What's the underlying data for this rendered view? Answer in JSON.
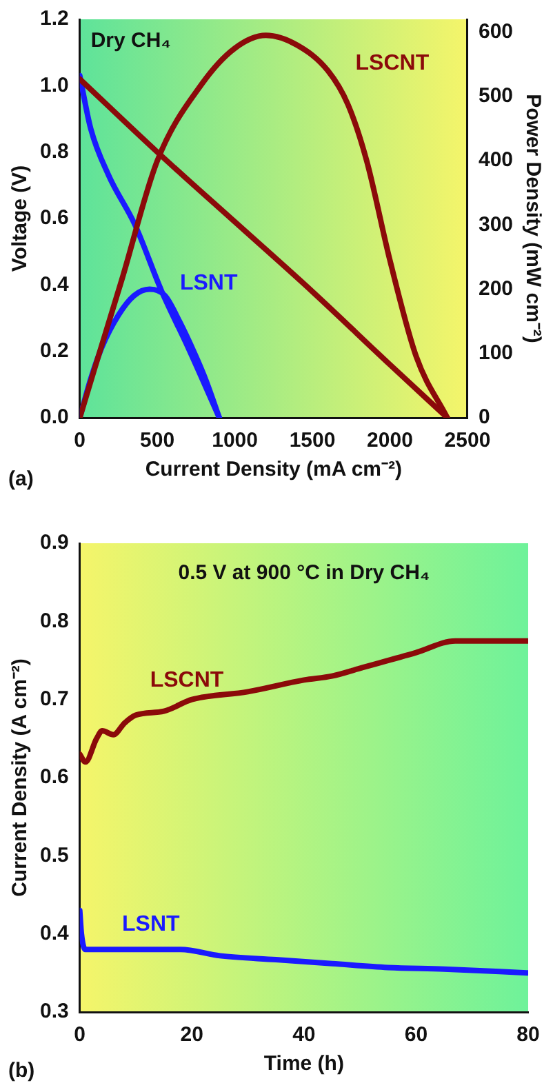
{
  "chart_data": [
    {
      "type": "line",
      "xlabel": "Current Density (mA cm⁻²)",
      "ylabel": "Voltage (V)",
      "y2label": "Power Density (mW cm⁻²)",
      "annotations": [
        "Dry CH₄",
        "(a)"
      ],
      "series": [
        {
          "color": "#8b0a0a",
          "x": [
            0,
            500,
            1000,
            1500,
            2000,
            2370
          ],
          "values": [
            1.02,
            0.8,
            0.59,
            0.38,
            0.16,
            0.0
          ]
        },
        {
          "name": "LSCNT",
          "color": "#8b0a0a",
          "axis": "y2",
          "x": [
            0,
            100,
            270,
            500,
            786,
            1000,
            1200,
            1400,
            1600,
            1730,
            1850,
            2000,
            2170,
            2370
          ],
          "values": [
            0,
            80,
            214,
            400,
            519,
            575,
            595,
            580,
            540,
            487,
            400,
            245,
            95,
            0
          ]
        },
        {
          "color": "#1a1aff",
          "x": [
            0,
            71,
            186,
            357,
            529,
            700,
            900
          ],
          "values": [
            1.03,
            0.87,
            0.73,
            0.58,
            0.38,
            0.21,
            0.0
          ]
        },
        {
          "name": "LSNT",
          "color": "#1a1aff",
          "axis": "y2",
          "x": [
            0,
            70,
            143,
            250,
            350,
            450,
            550,
            643,
            750,
            814,
            900
          ],
          "values": [
            0,
            60,
            110,
            160,
            190,
            200,
            190,
            150,
            95,
            58,
            0
          ]
        }
      ],
      "xlim": [
        0,
        2500
      ],
      "xticks": [
        0,
        500,
        1000,
        1500,
        2000,
        2500
      ],
      "ylim": [
        0,
        1.2
      ],
      "yticks": [
        {
          "value": 0,
          "label": "0.0"
        },
        {
          "value": 0.2,
          "label": "0.2"
        },
        {
          "value": 0.4,
          "label": "0.4"
        },
        {
          "value": 0.6,
          "label": "0.6"
        },
        {
          "value": 0.8,
          "label": "0.8"
        },
        {
          "value": 1,
          "label": "1.0"
        },
        {
          "value": 1.2,
          "label": "1.2"
        }
      ],
      "y2lim": [
        0,
        620
      ],
      "y2ticks": [
        0,
        100,
        200,
        300,
        400,
        500,
        600
      ],
      "grid": false,
      "legend": false,
      "marker": "none",
      "line_style": "solid"
    },
    {
      "type": "line",
      "xlabel": "Time (h)",
      "ylabel": "Current Density (A cm⁻²)",
      "annotations": [
        "0.5 V at 900 °C in Dry CH₄",
        "(b)"
      ],
      "series": [
        {
          "name": "LSCNT",
          "color": "#8b0a0a",
          "x": [
            0,
            1,
            3,
            4,
            6,
            8,
            10,
            15,
            20,
            30,
            40,
            45,
            50,
            60,
            67,
            80
          ],
          "values": [
            0.63,
            0.62,
            0.65,
            0.66,
            0.655,
            0.67,
            0.68,
            0.685,
            0.7,
            0.71,
            0.725,
            0.73,
            0.74,
            0.76,
            0.775,
            0.775
          ]
        },
        {
          "name": "LSNT",
          "color": "#1a1aff",
          "x": [
            0,
            0.3,
            1,
            10,
            18,
            25,
            35,
            45,
            55,
            65,
            80
          ],
          "values": [
            0.43,
            0.4,
            0.38,
            0.38,
            0.38,
            0.372,
            0.367,
            0.362,
            0.357,
            0.355,
            0.35
          ]
        }
      ],
      "xlim": [
        0,
        80
      ],
      "xticks": [
        0,
        20,
        40,
        60,
        80
      ],
      "ylim": [
        0.3,
        0.9
      ],
      "yticks": [
        0.3,
        0.4,
        0.5,
        0.6,
        0.7,
        0.8,
        0.9
      ],
      "grid": false,
      "legend": false,
      "marker": "none",
      "line_style": "solid"
    }
  ]
}
